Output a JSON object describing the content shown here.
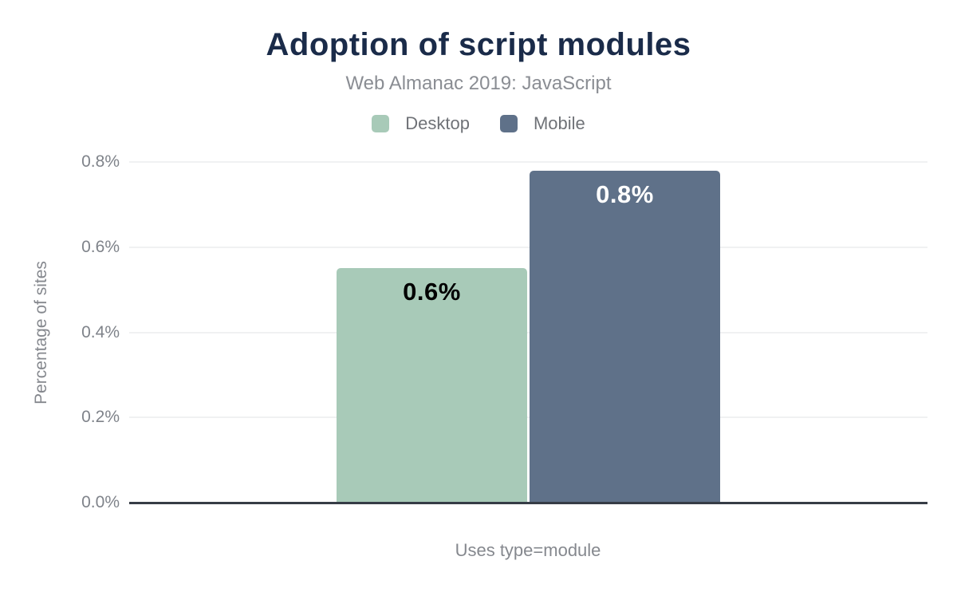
{
  "title": "Adoption of script modules",
  "subtitle": "Web Almanac 2019: JavaScript",
  "legend": [
    {
      "label": "Desktop",
      "color": "#a8cab8"
    },
    {
      "label": "Mobile",
      "color": "#5f7189"
    }
  ],
  "chart_data": {
    "type": "bar",
    "title": "Adoption of script modules",
    "subtitle": "Web Almanac 2019: JavaScript",
    "categories": [
      "Uses type=module"
    ],
    "series": [
      {
        "name": "Desktop",
        "values": [
          0.55
        ],
        "color": "#a8cab8",
        "label": "0.6%",
        "label_color": "#000000"
      },
      {
        "name": "Mobile",
        "values": [
          0.78
        ],
        "color": "#5f7189",
        "label": "0.8%",
        "label_color": "#ffffff"
      }
    ],
    "xlabel": "Uses type=module",
    "ylabel": "Percentage of sites",
    "ylim": [
      0,
      0.8
    ],
    "yticks": [
      "0.0%",
      "0.2%",
      "0.4%",
      "0.6%",
      "0.8%"
    ],
    "grid": true,
    "legend_position": "top"
  },
  "colors": {
    "title_text": "#1a2b49",
    "subtitle_text": "#8a8d93",
    "axis_text": "#85888e",
    "tick_text": "#7f838a",
    "gridline": "#f0f1f2",
    "baseline": "#363c46",
    "background": "#ffffff"
  }
}
